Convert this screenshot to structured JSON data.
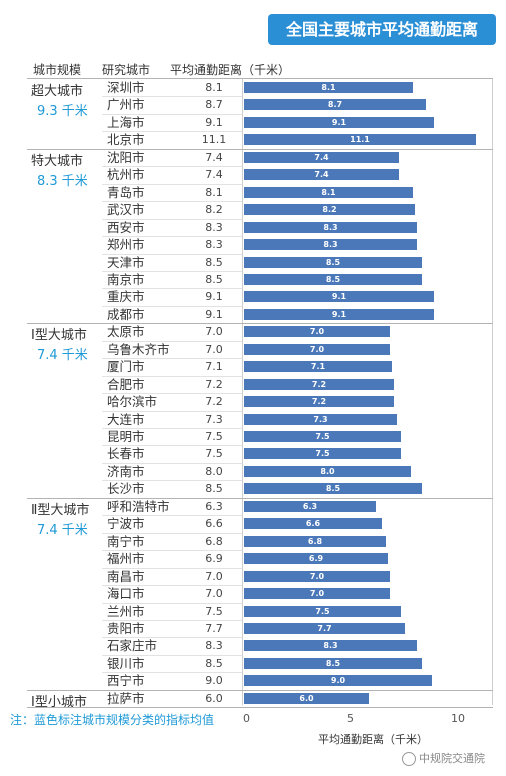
{
  "title": "全国主要城市平均通勤距离",
  "headers": {
    "scale": "城市规模",
    "city": "研究城市",
    "distance": "平均通勤距离（千米）"
  },
  "note": "注：蓝色标注城市规模分类的指标均值",
  "watermark": "中规院交通院",
  "colors": {
    "bar": "#4b78b8",
    "title_bg": "#2b8fd6",
    "group_avg": "#1f9ad6"
  },
  "chart_data": {
    "type": "bar",
    "orientation": "horizontal",
    "xlabel": "平均通勤距离（千米）",
    "xlim": [
      0,
      11.5
    ],
    "xticks": [
      "0",
      "5",
      "10"
    ],
    "groups": [
      {
        "name": "超大城市",
        "avg": "9.3 千米",
        "cities": [
          {
            "name": "深圳市",
            "value": 8.1
          },
          {
            "name": "广州市",
            "value": 8.7
          },
          {
            "name": "上海市",
            "value": 9.1
          },
          {
            "name": "北京市",
            "value": 11.1
          }
        ]
      },
      {
        "name": "特大城市",
        "avg": "8.3 千米",
        "cities": [
          {
            "name": "沈阳市",
            "value": 7.4
          },
          {
            "name": "杭州市",
            "value": 7.4
          },
          {
            "name": "青岛市",
            "value": 8.1
          },
          {
            "name": "武汉市",
            "value": 8.2
          },
          {
            "name": "西安市",
            "value": 8.3
          },
          {
            "name": "郑州市",
            "value": 8.3
          },
          {
            "name": "天津市",
            "value": 8.5
          },
          {
            "name": "南京市",
            "value": 8.5
          },
          {
            "name": "重庆市",
            "value": 9.1
          },
          {
            "name": "成都市",
            "value": 9.1
          }
        ]
      },
      {
        "name": "Ⅰ型大城市",
        "avg": "7.4 千米",
        "cities": [
          {
            "name": "太原市",
            "value": 7.0
          },
          {
            "name": "乌鲁木齐市",
            "value": 7.0
          },
          {
            "name": "厦门市",
            "value": 7.1
          },
          {
            "name": "合肥市",
            "value": 7.2
          },
          {
            "name": "哈尔滨市",
            "value": 7.2
          },
          {
            "name": "大连市",
            "value": 7.3
          },
          {
            "name": "昆明市",
            "value": 7.5
          },
          {
            "name": "长春市",
            "value": 7.5
          },
          {
            "name": "济南市",
            "value": 8.0
          },
          {
            "name": "长沙市",
            "value": 8.5
          }
        ]
      },
      {
        "name": "Ⅱ型大城市",
        "avg": "7.4 千米",
        "cities": [
          {
            "name": "呼和浩特市",
            "value": 6.3
          },
          {
            "name": "宁波市",
            "value": 6.6
          },
          {
            "name": "南宁市",
            "value": 6.8
          },
          {
            "name": "福州市",
            "value": 6.9
          },
          {
            "name": "南昌市",
            "value": 7.0
          },
          {
            "name": "海口市",
            "value": 7.0
          },
          {
            "name": "兰州市",
            "value": 7.5
          },
          {
            "name": "贵阳市",
            "value": 7.7
          },
          {
            "name": "石家庄市",
            "value": 8.3
          },
          {
            "name": "银川市",
            "value": 8.5
          },
          {
            "name": "西宁市",
            "value": 9.0
          }
        ]
      },
      {
        "name": "Ⅰ型小城市",
        "avg": "",
        "cities": [
          {
            "name": "拉萨市",
            "value": 6.0
          }
        ]
      }
    ]
  }
}
